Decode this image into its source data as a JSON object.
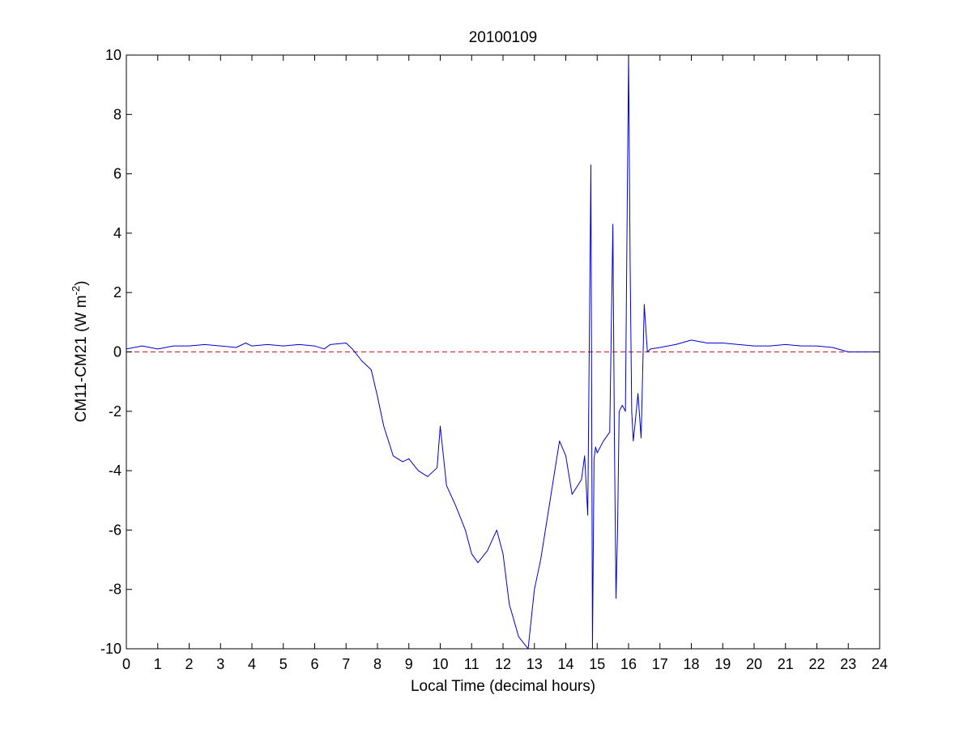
{
  "chart_data": {
    "type": "line",
    "title": "20100109",
    "xlabel": "Local Time (decimal hours)",
    "ylabel_main": "CM11-CM21 (W m",
    "ylabel_sup": "-2",
    "ylabel_tail": ")",
    "xlim": [
      0,
      24
    ],
    "ylim": [
      -10,
      10
    ],
    "x_ticks": [
      "0",
      "1",
      "2",
      "3",
      "4",
      "5",
      "6",
      "7",
      "8",
      "9",
      "10",
      "11",
      "12",
      "13",
      "14",
      "15",
      "16",
      "17",
      "18",
      "19",
      "20",
      "21",
      "22",
      "23",
      "24"
    ],
    "y_ticks": [
      "-10",
      "-8",
      "-6",
      "-4",
      "-2",
      "0",
      "2",
      "4",
      "6",
      "8",
      "10"
    ],
    "grid": false,
    "colors": {
      "series": "#0000cc",
      "reference": "#cc3333"
    },
    "reference_line": {
      "y": 0,
      "style": "dashed"
    },
    "series": [
      {
        "x": [
          0,
          0.5,
          1,
          1.5,
          2,
          2.5,
          3,
          3.5,
          3.8,
          4,
          4.5,
          5,
          5.5,
          6,
          6.3,
          6.5,
          7,
          7.2,
          7.5,
          7.8,
          8,
          8.2,
          8.5,
          8.8,
          9,
          9.3,
          9.6,
          9.9,
          10,
          10.2,
          10.5,
          10.8,
          11,
          11.2,
          11.5,
          11.8,
          12,
          12.2,
          12.5,
          12.8,
          13,
          13.2,
          13.5,
          13.8,
          14,
          14.2,
          14.5,
          14.6,
          14.7,
          14.8,
          14.85,
          14.9,
          14.95,
          15,
          15.2,
          15.4,
          15.5,
          15.55,
          15.6,
          15.65,
          15.7,
          15.8,
          15.9,
          16,
          16.05,
          16.1,
          16.15,
          16.2,
          16.3,
          16.4,
          16.5,
          16.6,
          16.7,
          17,
          17.5,
          18,
          18.5,
          19,
          19.5,
          20,
          20.5,
          21,
          21.5,
          22,
          22.5,
          23,
          23.5,
          24
        ],
        "y": [
          0.1,
          0.2,
          0.1,
          0.2,
          0.2,
          0.25,
          0.2,
          0.15,
          0.3,
          0.2,
          0.25,
          0.2,
          0.25,
          0.2,
          0.1,
          0.25,
          0.3,
          0.1,
          -0.3,
          -0.6,
          -1.5,
          -2.5,
          -3.5,
          -3.7,
          -3.6,
          -4.0,
          -4.2,
          -3.9,
          -2.5,
          -4.5,
          -5.2,
          -6,
          -6.8,
          -7.1,
          -6.7,
          -6.0,
          -6.8,
          -8.5,
          -9.6,
          -10,
          -8,
          -7,
          -5,
          -3,
          -3.5,
          -4.8,
          -4.3,
          -3.5,
          -5.5,
          6.3,
          -10,
          -3.6,
          -3.2,
          -3.4,
          -3.0,
          -2.7,
          4.3,
          -3,
          -8.3,
          -6,
          -2,
          -1.8,
          -2,
          10,
          3,
          -2,
          -3,
          -2.5,
          -1.4,
          -2.9,
          1.6,
          0,
          0.1,
          0.15,
          0.25,
          0.4,
          0.3,
          0.3,
          0.25,
          0.2,
          0.2,
          0.25,
          0.2,
          0.2,
          0.15,
          0.0,
          0.0,
          0.0
        ]
      }
    ]
  }
}
